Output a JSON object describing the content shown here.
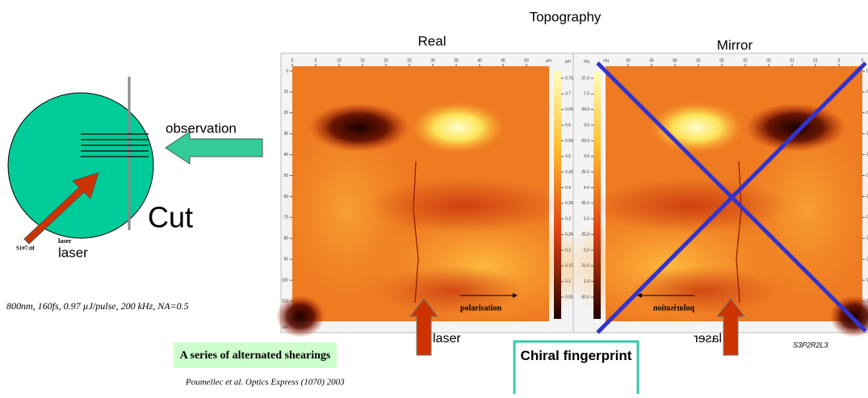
{
  "title": "Topography",
  "panels": {
    "real": "Real",
    "mirror": "Mirror"
  },
  "left_diagram": {
    "observation": "observation",
    "cut": "Cut",
    "file": "S1#7.tif",
    "laser_small": "laser",
    "laser": "laser"
  },
  "conditions": "800nm, 160fs, 0.97 µJ/pulse, 200 kHz, NA=0.5",
  "caption": "A series of alternated shearings",
  "reference": "Poumellec et al. Optics Express (1070) 2003",
  "image": {
    "x_ticks": [
      0,
      5,
      10,
      15,
      20,
      25,
      30,
      35,
      40,
      45,
      50
    ],
    "x_unit": "µm",
    "y_ticks": [
      0,
      10,
      20,
      30,
      40,
      50,
      60,
      70,
      80,
      90,
      100,
      110
    ],
    "y_unit": "µm",
    "colorbar_ticks": [
      0.75,
      0.7,
      0.65,
      0.6,
      0.55,
      0.5,
      0.45,
      0.4,
      0.35,
      0.3,
      0.25,
      0.2,
      0.15,
      0.1,
      0.05
    ],
    "colorbar_unit": "µm",
    "polarisation": "polarisation",
    "laser": "laser"
  },
  "sample_id": "S3P2R2L3",
  "conclusion": "Chiral fingerprint"
}
